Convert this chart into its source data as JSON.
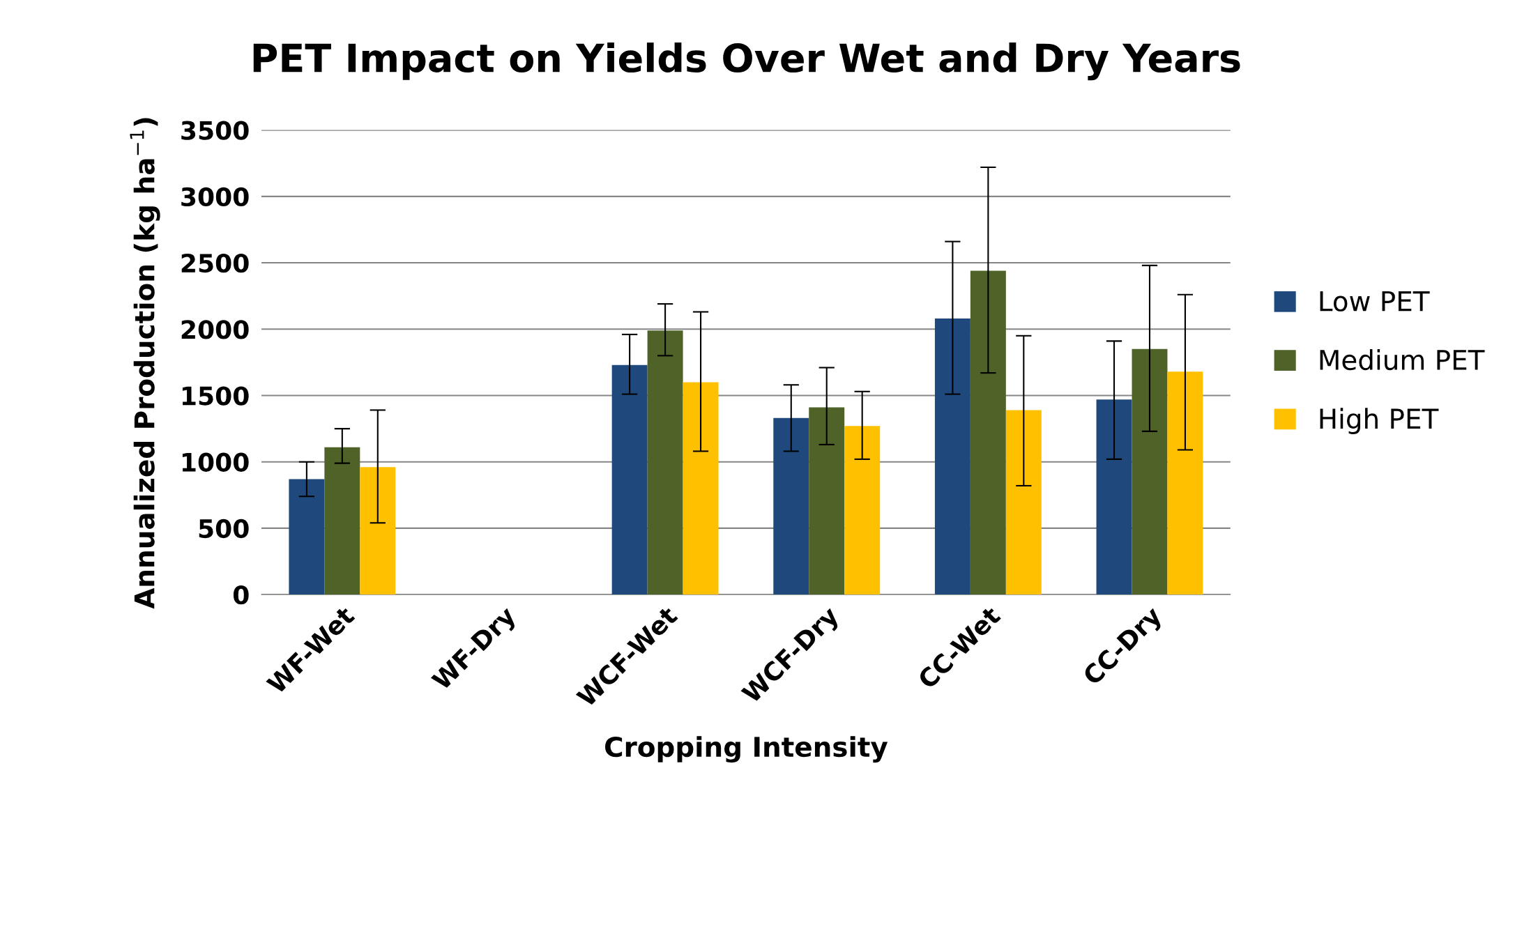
{
  "chart_data": {
    "type": "bar",
    "title": "PET Impact on Yields Over Wet and Dry Years",
    "xlabel": "Cropping Intensity",
    "ylabel": "Annualized Production (kg ha$^{−1}$)",
    "categories": [
      "WF-Wet",
      "WF-Dry",
      "WCF-Wet",
      "WCF-Dry",
      "CC-Wet",
      "CC-Dry"
    ],
    "series": [
      {
        "name": "Low PET",
        "color": "#1f497d",
        "values": [
          870,
          null,
          1730,
          1330,
          2080,
          1470
        ],
        "errors": [
          [
            740,
            1000
          ],
          null,
          [
            1510,
            1960
          ],
          [
            1080,
            1580
          ],
          [
            1510,
            2660
          ],
          [
            1020,
            1910
          ]
        ]
      },
      {
        "name": "Medium PET",
        "color": "#4f6228",
        "values": [
          1110,
          null,
          1990,
          1410,
          2440,
          1850
        ],
        "errors": [
          [
            990,
            1250
          ],
          null,
          [
            1800,
            2190
          ],
          [
            1130,
            1710
          ],
          [
            1670,
            3220
          ],
          [
            1230,
            2480
          ]
        ]
      },
      {
        "name": "High PET",
        "color": "#ffc000",
        "values": [
          960,
          null,
          1600,
          1270,
          1390,
          1680
        ],
        "errors": [
          [
            540,
            1390
          ],
          null,
          [
            1080,
            2130
          ],
          [
            1020,
            1530
          ],
          [
            820,
            1950
          ],
          [
            1090,
            2260
          ]
        ]
      }
    ],
    "ylim": [
      0,
      3500
    ],
    "yticks": [
      0,
      500,
      1000,
      1500,
      2000,
      2500,
      3000,
      3500
    ],
    "grid": "y",
    "legend": "right"
  }
}
